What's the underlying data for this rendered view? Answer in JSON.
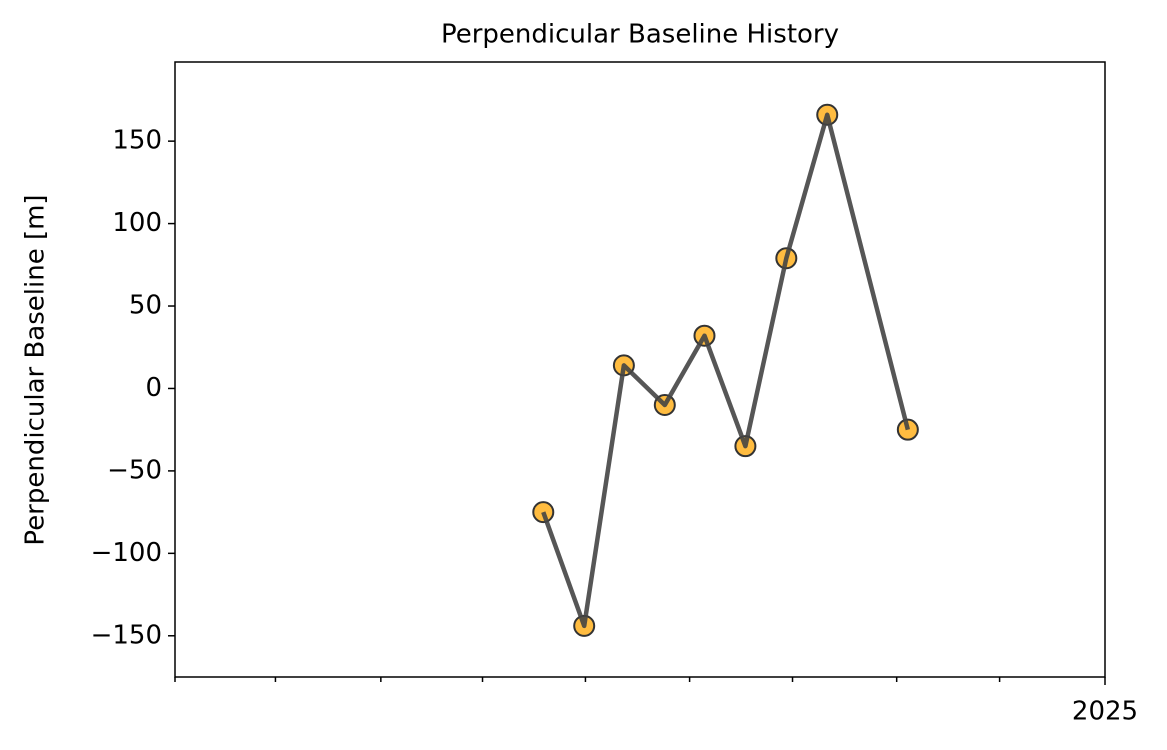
{
  "chart_data": {
    "type": "line",
    "title": "Perpendicular Baseline History",
    "ylabel": "Perpendicular Baseline [m]",
    "x": [
      2024.547,
      2024.58,
      2024.612,
      2024.645,
      2024.677,
      2024.71,
      2024.743,
      2024.776,
      2024.841
    ],
    "series": [
      {
        "values": [
          -75,
          -144,
          14,
          -10,
          32,
          -35,
          79,
          166,
          -25
        ],
        "color": "#444444",
        "marker_color": "#ffa500"
      }
    ],
    "xlim": [
      2024.25,
      2025.0
    ],
    "xticks": [
      2025
    ],
    "xminor_ticks": [
      2024.25,
      2024.331,
      2024.416,
      2024.498,
      2024.581,
      2024.665,
      2024.748,
      2024.832,
      2024.915
    ],
    "ylim": [
      -175,
      198
    ],
    "yticks": [
      {
        "value": -150,
        "label": "−150"
      },
      {
        "value": -100,
        "label": "−100"
      },
      {
        "value": -50,
        "label": "−50"
      },
      0,
      50,
      100,
      150
    ],
    "grid": false
  }
}
